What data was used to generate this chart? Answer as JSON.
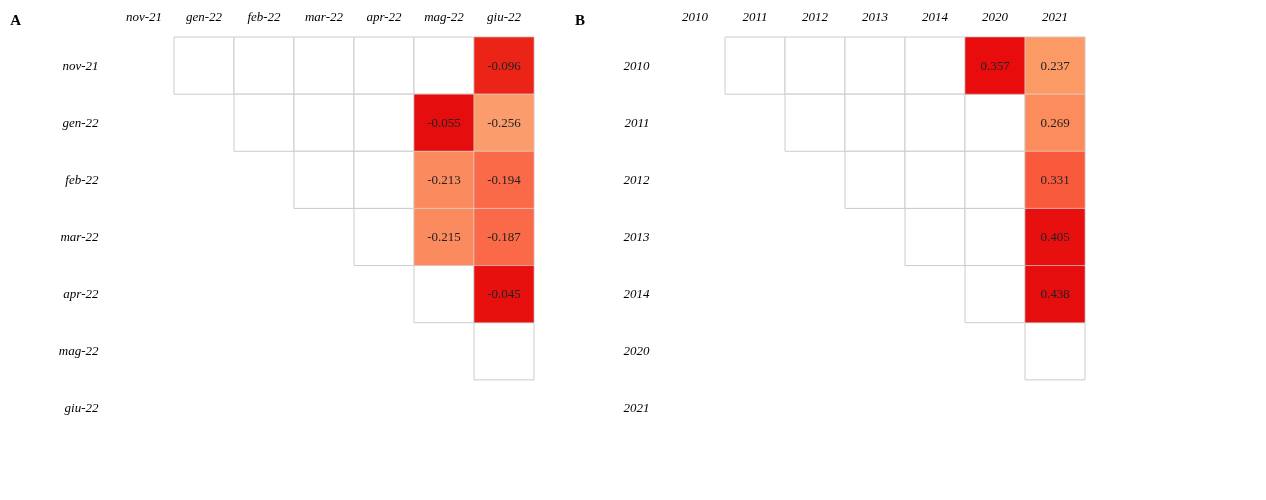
{
  "chart_data": [
    {
      "type": "heatmap",
      "title": "A",
      "categories": [
        "nov-21",
        "gen-22",
        "feb-22",
        "mar-22",
        "apr-22",
        "mag-22",
        "giu-22"
      ],
      "y_categories": [
        "nov-21",
        "gen-22",
        "feb-22",
        "mar-22",
        "apr-22",
        "mag-22",
        "giu-22"
      ],
      "cells": [
        [
          null,
          null,
          null,
          null,
          null,
          null,
          -0.096
        ],
        [
          null,
          null,
          null,
          null,
          null,
          -0.055,
          -0.256
        ],
        [
          null,
          null,
          null,
          null,
          null,
          -0.213,
          -0.194
        ],
        [
          null,
          null,
          null,
          null,
          null,
          -0.215,
          -0.187
        ],
        [
          null,
          null,
          null,
          null,
          null,
          null,
          -0.045
        ],
        [
          null,
          null,
          null,
          null,
          null,
          null,
          null
        ],
        [
          null,
          null,
          null,
          null,
          null,
          null,
          null
        ]
      ],
      "colors": [
        [
          null,
          null,
          null,
          null,
          null,
          null,
          "#ec2418"
        ],
        [
          null,
          null,
          null,
          null,
          null,
          "#e50d0d",
          "#fb9c6c"
        ],
        [
          null,
          null,
          null,
          null,
          null,
          "#fb8a5e",
          "#fa6a48"
        ],
        [
          null,
          null,
          null,
          null,
          null,
          "#fb8a5e",
          "#fa6a48"
        ],
        [
          null,
          null,
          null,
          null,
          null,
          null,
          "#e8100e"
        ],
        [
          null,
          null,
          null,
          null,
          null,
          null,
          null
        ],
        [
          null,
          null,
          null,
          null,
          null,
          null,
          null
        ]
      ],
      "data_labels": true
    },
    {
      "type": "heatmap",
      "title": "B",
      "categories": [
        "2010",
        "2011",
        "2012",
        "2013",
        "2014",
        "2020",
        "2021"
      ],
      "y_categories": [
        "2010",
        "2011",
        "2012",
        "2013",
        "2014",
        "2020",
        "2021"
      ],
      "cells": [
        [
          null,
          null,
          null,
          null,
          null,
          0.357,
          0.237
        ],
        [
          null,
          null,
          null,
          null,
          null,
          null,
          0.269
        ],
        [
          null,
          null,
          null,
          null,
          null,
          null,
          0.331
        ],
        [
          null,
          null,
          null,
          null,
          null,
          null,
          0.405
        ],
        [
          null,
          null,
          null,
          null,
          null,
          null,
          0.438
        ],
        [
          null,
          null,
          null,
          null,
          null,
          null,
          null
        ],
        [
          null,
          null,
          null,
          null,
          null,
          null,
          null
        ]
      ],
      "colors": [
        [
          null,
          null,
          null,
          null,
          null,
          "#e80c0c",
          "#fc9a66"
        ],
        [
          null,
          null,
          null,
          null,
          null,
          null,
          "#fc8c5c"
        ],
        [
          null,
          null,
          null,
          null,
          null,
          null,
          "#fa5a3c"
        ],
        [
          null,
          null,
          null,
          null,
          null,
          null,
          "#e8100e"
        ],
        [
          null,
          null,
          null,
          null,
          null,
          null,
          "#e50d0d"
        ],
        [
          null,
          null,
          null,
          null,
          null,
          null,
          null
        ],
        [
          null,
          null,
          null,
          null,
          null,
          null,
          null
        ]
      ],
      "data_labels": true
    }
  ]
}
